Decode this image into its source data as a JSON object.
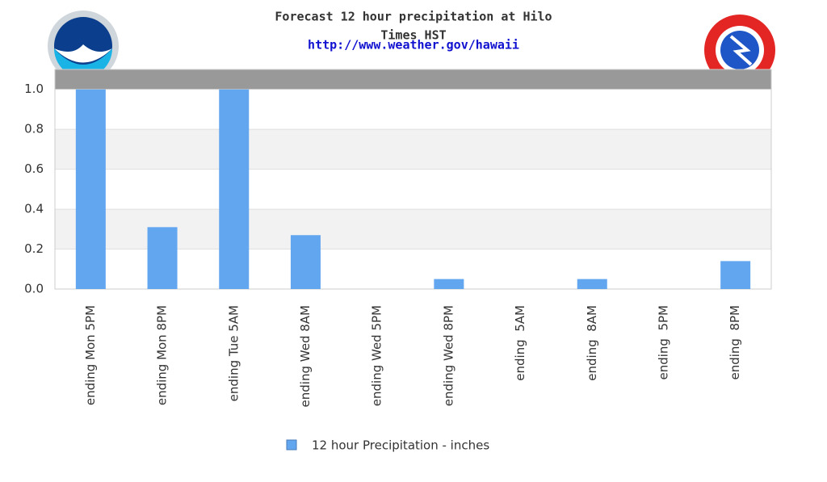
{
  "chart_data": {
    "type": "bar",
    "title": "Forecast 12 hour precipitation at Hilo",
    "title_line2": "Times HST",
    "subtitle": "http://www.weather.gov/hawaii",
    "categories": [
      "ending Mon 5PM",
      "ending Mon 8PM",
      "ending Tue 5AM",
      "ending Wed 8AM",
      "ending Wed 5PM",
      "ending Wed 8PM",
      "ending  5AM",
      "ending  8AM",
      "ending  5PM",
      "ending  8PM"
    ],
    "series": [
      {
        "name": "12 hour Precipitation - inches",
        "color": "#63a6f0",
        "values": [
          1.0,
          0.31,
          1.0,
          0.27,
          0,
          0.05,
          0,
          0.05,
          0,
          0.14
        ]
      }
    ],
    "ylim": [
      0,
      1.1
    ],
    "yticks": [
      {
        "value": 0,
        "label": "0.0"
      },
      0.2,
      0.4,
      0.6,
      0.8,
      {
        "value": 1,
        "label": "1.0"
      }
    ],
    "grid": true
  }
}
